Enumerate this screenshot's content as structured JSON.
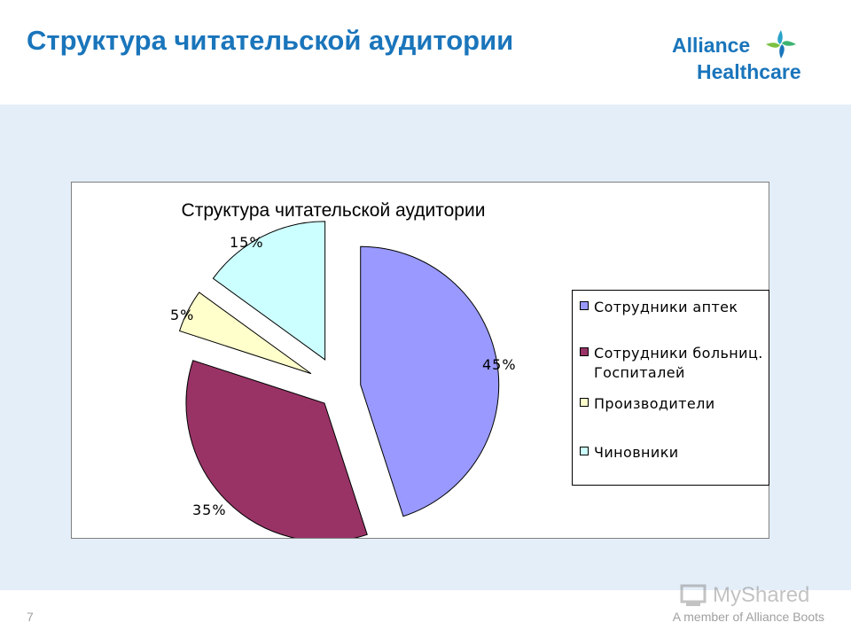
{
  "slide": {
    "title": "Структура читательской аудитории",
    "page_number": "7",
    "footer": "A member of Alliance Boots"
  },
  "logo": {
    "line1": "Alliance",
    "line2": "Healthcare",
    "color": "#1a75bb"
  },
  "watermark": {
    "text": "MyShared"
  },
  "colors": {
    "title": "#1a75bb",
    "band": "#e4eef8"
  },
  "chart_data": {
    "type": "pie",
    "title": "Структура читательской аудитории",
    "exploded": true,
    "legend_position": "right",
    "slices": [
      {
        "label": "Сотрудники аптек",
        "value": 45,
        "value_label": "45%",
        "color": "#9999ff"
      },
      {
        "label": "Сотрудники больниц. Госпиталей",
        "value": 35,
        "value_label": "35%",
        "color": "#993366"
      },
      {
        "label": "Производители",
        "value": 5,
        "value_label": "5%",
        "color": "#ffffcc"
      },
      {
        "label": "Чиновники",
        "value": 15,
        "value_label": "15%",
        "color": "#ccffff"
      }
    ]
  }
}
